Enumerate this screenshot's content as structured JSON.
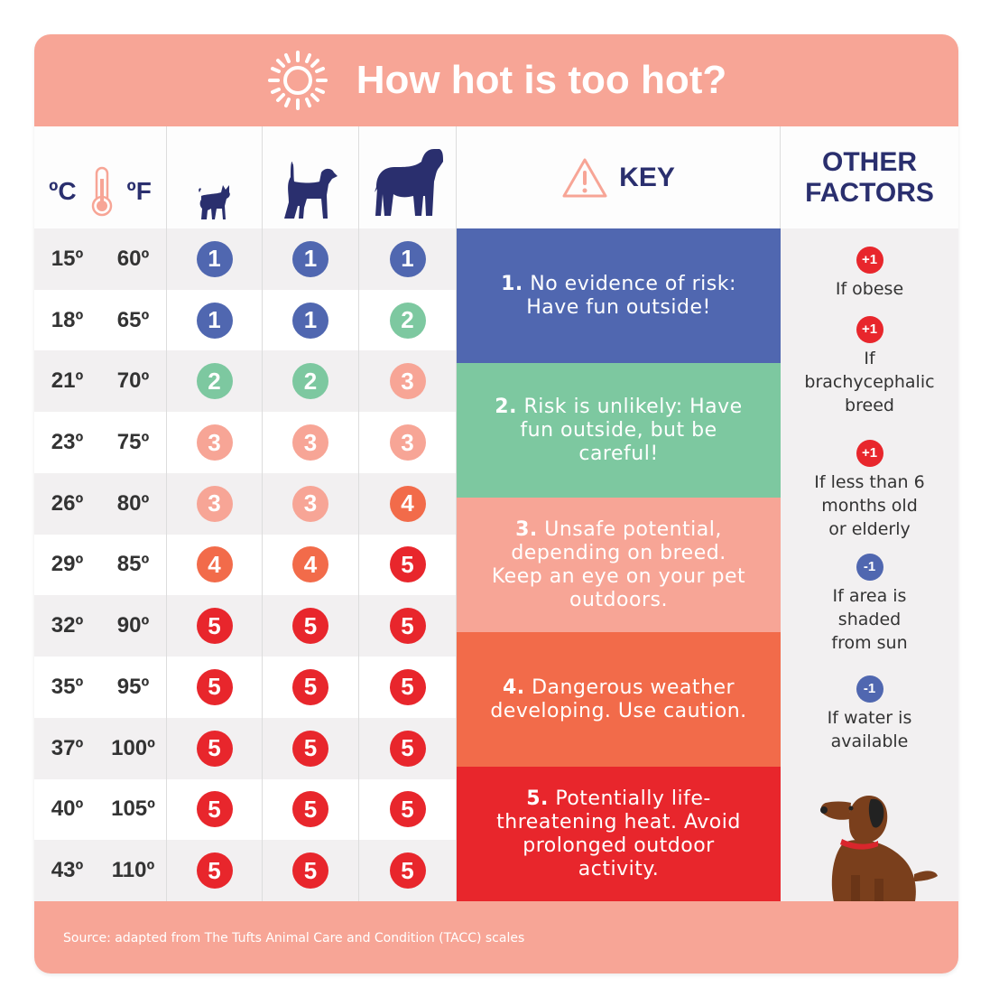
{
  "title": "How hot is too hot?",
  "header": {
    "celsius": "ºC",
    "fahrenheit": "ºF",
    "dogs": [
      "small-dog-icon",
      "medium-dog-icon",
      "large-dog-icon"
    ],
    "key": "KEY",
    "other": "OTHER FACTORS"
  },
  "colors": {
    "1": "#5067b0",
    "2": "#7dc8a0",
    "3": "#f7a596",
    "4": "#f26b4a",
    "5": "#e8262c"
  },
  "rows": [
    {
      "c": "15º",
      "f": "60º",
      "small": "1",
      "medium": "1",
      "large": "1"
    },
    {
      "c": "18º",
      "f": "65º",
      "small": "1",
      "medium": "1",
      "large": "2"
    },
    {
      "c": "21º",
      "f": "70º",
      "small": "2",
      "medium": "2",
      "large": "3"
    },
    {
      "c": "23º",
      "f": "75º",
      "small": "3",
      "medium": "3",
      "large": "3"
    },
    {
      "c": "26º",
      "f": "80º",
      "small": "3",
      "medium": "3",
      "large": "4"
    },
    {
      "c": "29º",
      "f": "85º",
      "small": "4",
      "medium": "4",
      "large": "5"
    },
    {
      "c": "32º",
      "f": "90º",
      "small": "5",
      "medium": "5",
      "large": "5"
    },
    {
      "c": "35º",
      "f": "95º",
      "small": "5",
      "medium": "5",
      "large": "5"
    },
    {
      "c": "37º",
      "f": "100º",
      "small": "5",
      "medium": "5",
      "large": "5"
    },
    {
      "c": "40º",
      "f": "105º",
      "small": "5",
      "medium": "5",
      "large": "5"
    },
    {
      "c": "43º",
      "f": "110º",
      "small": "5",
      "medium": "5",
      "large": "5"
    }
  ],
  "key": [
    {
      "num": "1.",
      "text": "No evidence of risk: Have fun outside!"
    },
    {
      "num": "2.",
      "text": "Risk is unlikely: Have fun outside, but be careful!"
    },
    {
      "num": "3.",
      "text": "Unsafe potential, depending on breed. Keep an eye on your pet outdoors."
    },
    {
      "num": "4.",
      "text": "Dangerous weather developing. Use caution."
    },
    {
      "num": "5.",
      "text": "Potentially life-threatening heat. Avoid prolonged outdoor activity."
    }
  ],
  "other_factors": [
    {
      "badge": "+1",
      "text": "If obese"
    },
    {
      "badge": "+1",
      "text": "If brachycephalic breed"
    },
    {
      "badge": "+1",
      "text": "If less than 6 months old or elderly"
    },
    {
      "badge": "-1",
      "text": "If area is shaded from sun"
    },
    {
      "badge": "-1",
      "text": "If water is available"
    }
  ],
  "source": "Source: adapted from The Tufts Animal Care and Condition (TACC) scales"
}
